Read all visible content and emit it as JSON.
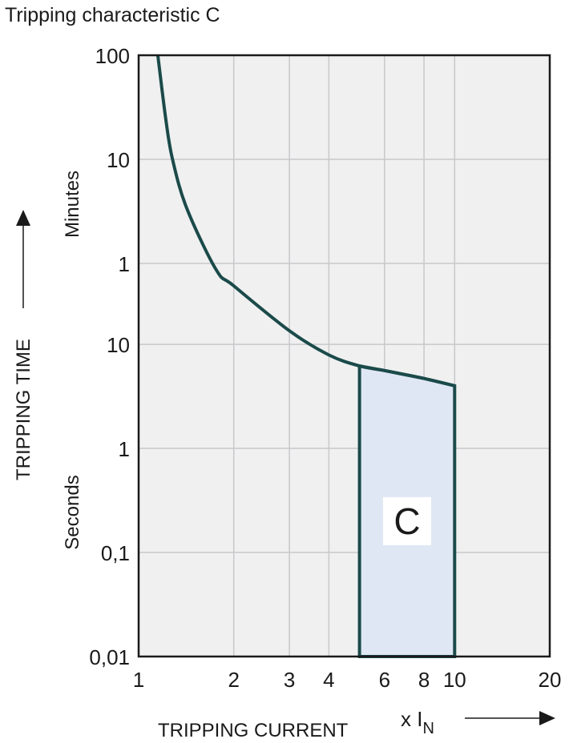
{
  "chart_data": {
    "type": "line",
    "title": "Tripping characteristic C",
    "xlabel": "TRIPPING CURRENT",
    "xunit_prefix": "x I",
    "xunit_sub": "N",
    "ylabel": "TRIPPING TIME",
    "y_unit_labels": {
      "minutes": "Minutes",
      "seconds": "Seconds"
    },
    "x_scale": "log",
    "y_scale": "log",
    "xlim": [
      1,
      20
    ],
    "ylim_seconds": [
      0.01,
      6000
    ],
    "grid": true,
    "x_ticks": [
      {
        "value": 1,
        "label": "1"
      },
      {
        "value": 2,
        "label": "2"
      },
      {
        "value": 3,
        "label": "3"
      },
      {
        "value": 4,
        "label": "4"
      },
      {
        "value": 6,
        "label": "6"
      },
      {
        "value": 8,
        "label": "8"
      },
      {
        "value": 10,
        "label": "10"
      },
      {
        "value": 20,
        "label": "20"
      }
    ],
    "y_ticks": [
      {
        "value_seconds": 6000,
        "label": "100"
      },
      {
        "value_seconds": 600,
        "label": "10"
      },
      {
        "value_seconds": 60,
        "label": "1"
      },
      {
        "value_seconds": 10,
        "label": "10"
      },
      {
        "value_seconds": 1,
        "label": "1"
      },
      {
        "value_seconds": 0.1,
        "label": "0,1"
      },
      {
        "value_seconds": 0.01,
        "label": "0,01"
      }
    ],
    "curve": {
      "x": [
        1.15,
        1.22,
        1.28,
        1.42,
        1.76,
        2,
        3,
        4,
        5,
        6,
        8,
        10
      ],
      "y_seconds": [
        6000,
        1425,
        600,
        203,
        52,
        36.5,
        13.5,
        7.9,
        6.2,
        5.6,
        4.7,
        4.0
      ]
    },
    "region": {
      "label": "C",
      "x_from": 5,
      "x_to": 10,
      "y_bottom_seconds": 0.01
    },
    "colors": {
      "curve": "#1b4a4a",
      "region_fill": "#e0e7f4",
      "plot_bg": "#f0f0f0",
      "grid": "#c8c8cc"
    }
  }
}
